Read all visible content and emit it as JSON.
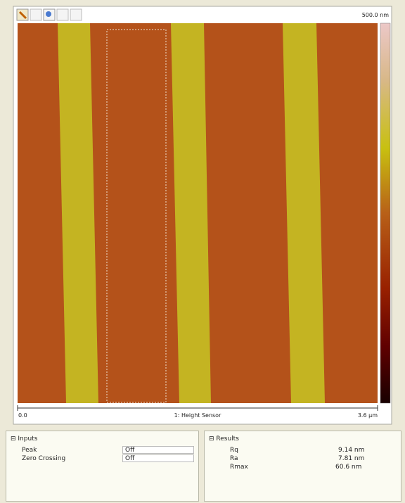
{
  "image_panel": {
    "scale_max": "500.0 nm",
    "x_start": "0.0",
    "channel": "1: Height Sensor",
    "x_end": "3.6 µm"
  },
  "inputs": {
    "title": "Inputs",
    "rows": [
      [
        "Peak",
        "Off"
      ],
      [
        "Zero Crossing",
        "Off"
      ]
    ]
  },
  "results": {
    "title": "Results",
    "rows": [
      [
        "Rq",
        "9.14 nm"
      ],
      [
        "Ra",
        "7.81 nm"
      ],
      [
        "Rmax",
        "60.6 nm"
      ]
    ]
  }
}
